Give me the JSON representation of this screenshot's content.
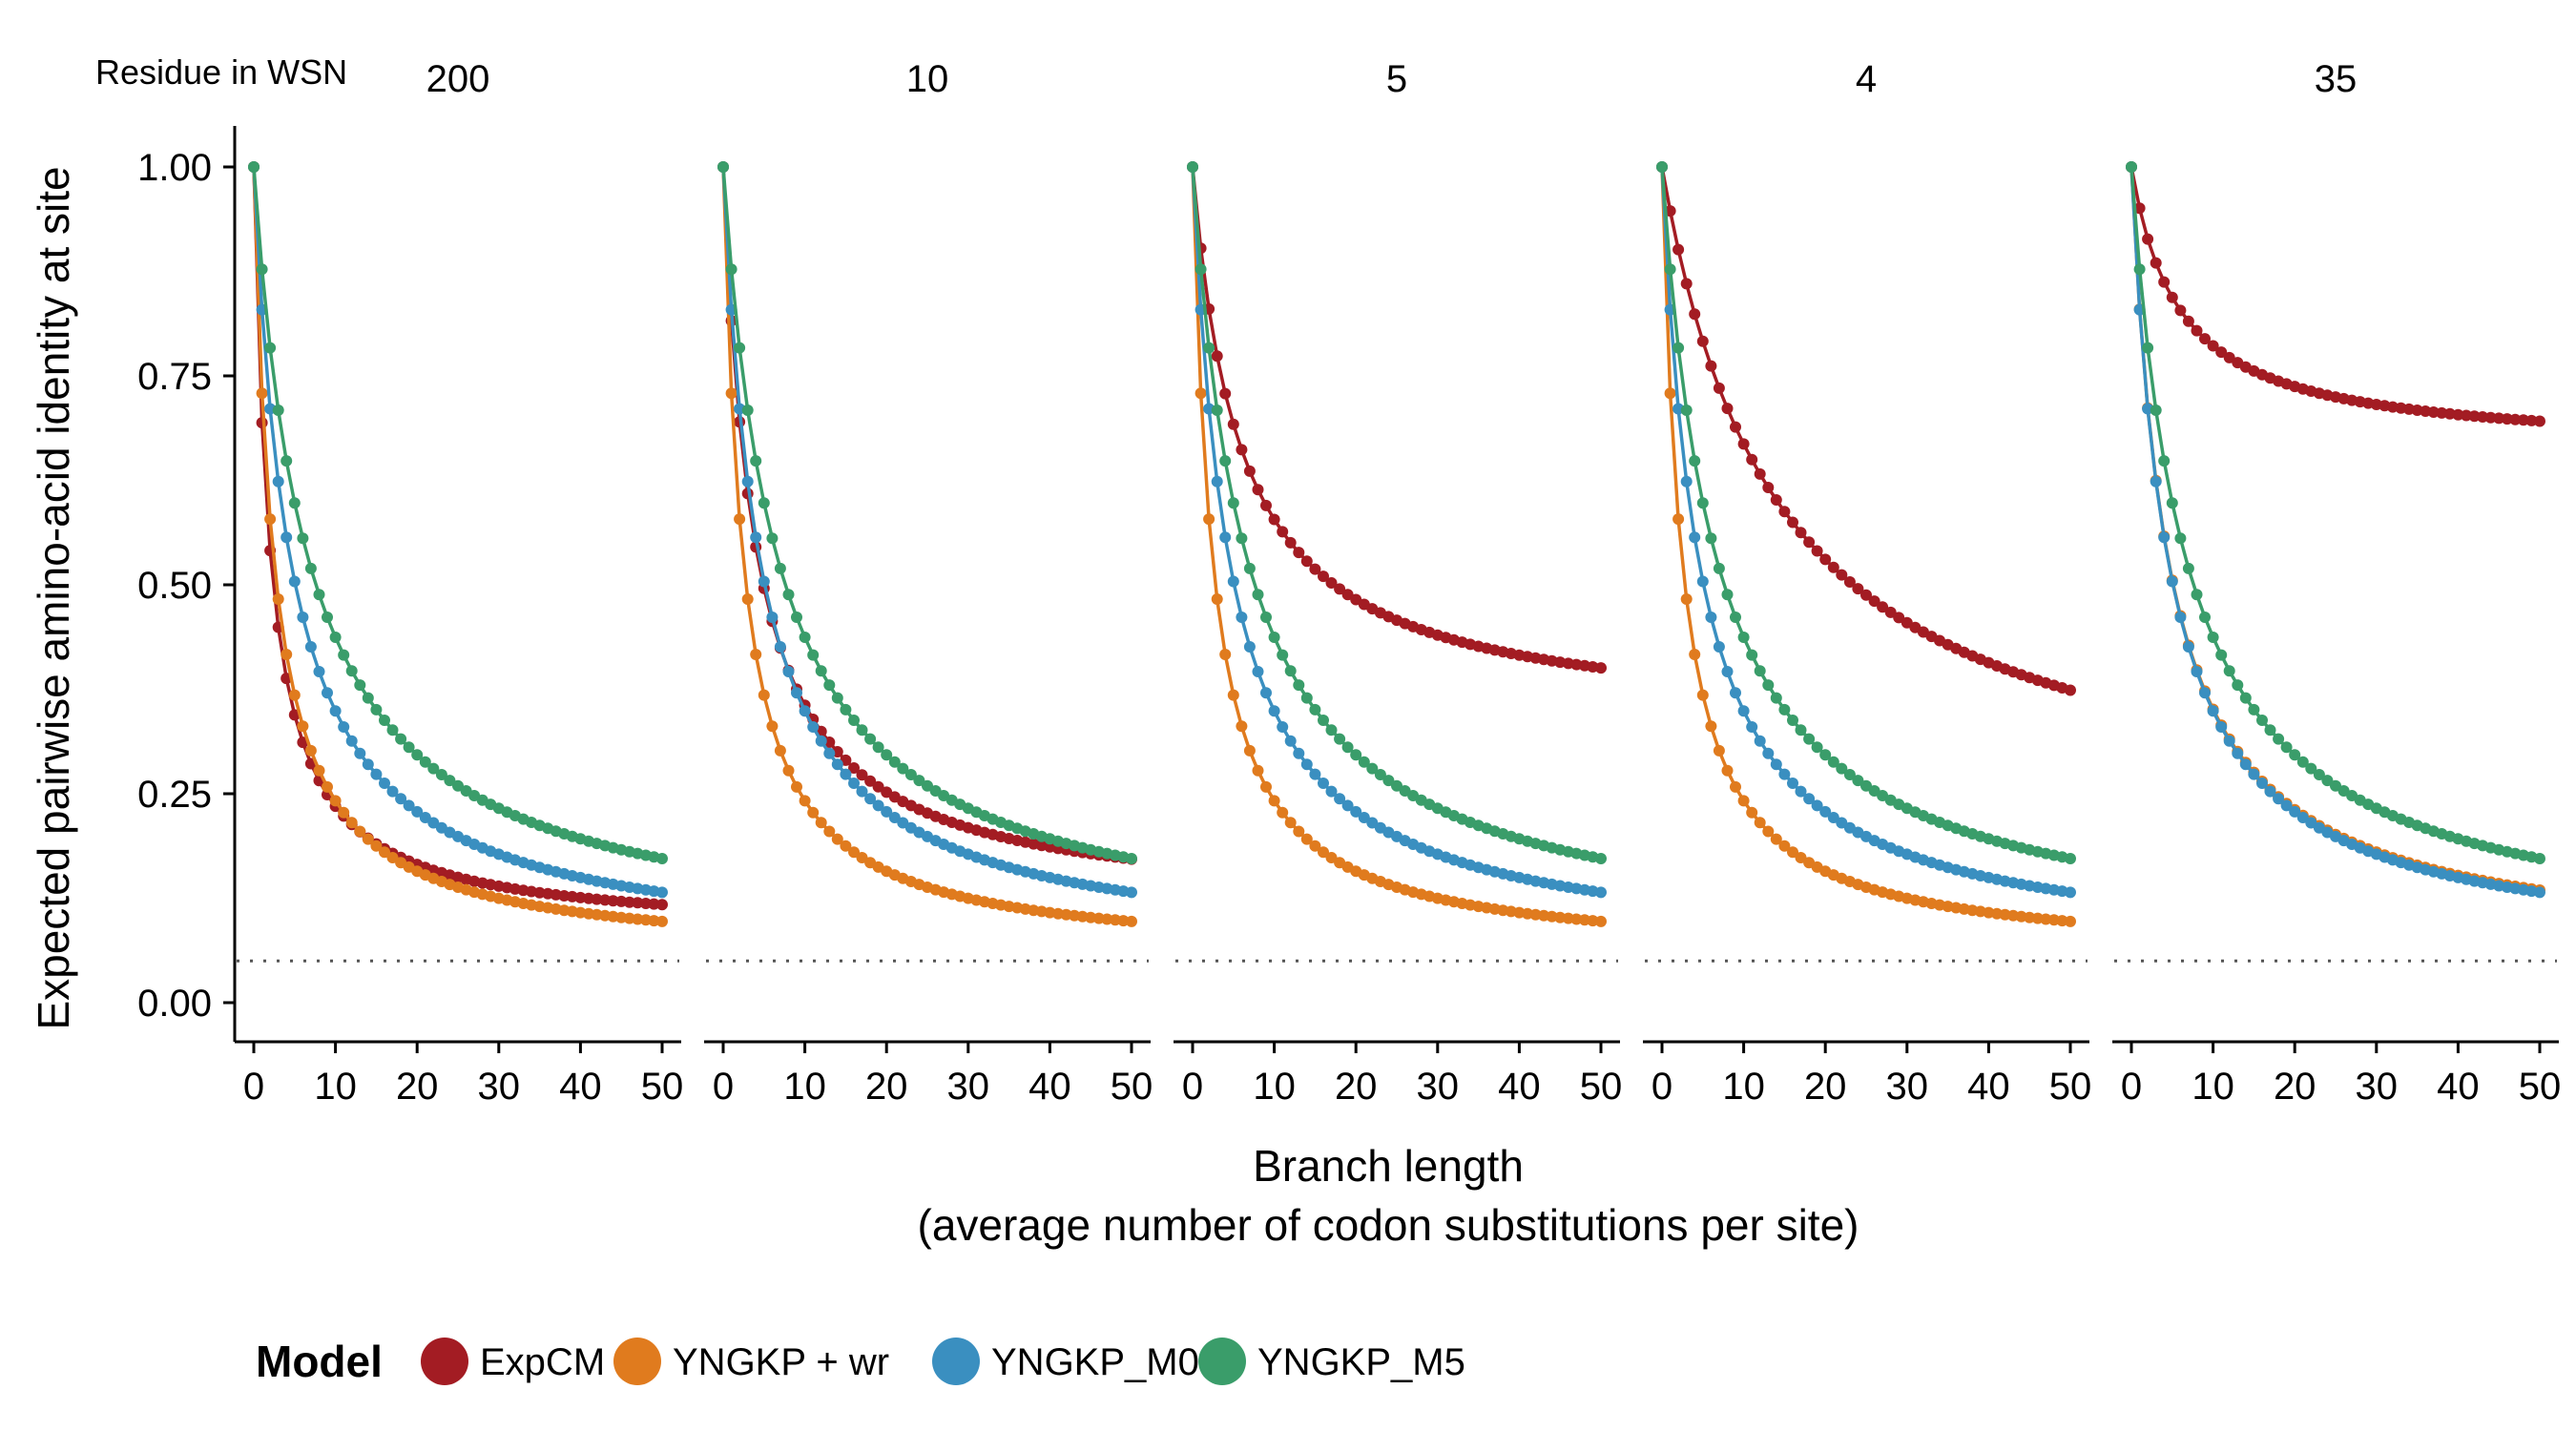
{
  "chart_data": {
    "type": "line",
    "facet_header_label": "Residue in WSN",
    "xlabel": "Branch length",
    "xlabel_line2": "(average number of codon substitutions per site)",
    "ylabel": "Expected pairwise amino-acid identity at site",
    "xlim": [
      0,
      50
    ],
    "ylim": [
      0,
      1
    ],
    "x_ticks": [
      0,
      10,
      20,
      30,
      40,
      50
    ],
    "y_ticks": [
      0.0,
      0.25,
      0.5,
      0.75,
      1.0
    ],
    "y_tick_labels": [
      "0.00",
      "0.25",
      "0.50",
      "0.75",
      "1.00"
    ],
    "reference_line_y": 0.05,
    "reference_line_style": "dotted",
    "x_step": 1,
    "legend": {
      "title": "Model",
      "position": "bottom"
    },
    "series_styles": [
      {
        "name": "ExpCM",
        "color": "#a31c23"
      },
      {
        "name": "YNGKP + wr",
        "color": "#e07b1e"
      },
      {
        "name": "YNGKP_M0",
        "color": "#3a8fc0"
      },
      {
        "name": "YNGKP_M5",
        "color": "#3a9d6a"
      }
    ],
    "panels": [
      {
        "label": "200",
        "series": [
          {
            "name": "ExpCM",
            "asymptote": 0.082,
            "rate": 0.5
          },
          {
            "name": "YNGKP + wr",
            "asymptote": 0.052,
            "rate": 0.4
          },
          {
            "name": "YNGKP_M0",
            "asymptote": 0.053,
            "rate": 0.22
          },
          {
            "name": "YNGKP_M5",
            "asymptote": 0.062,
            "rate": 0.15
          }
        ]
      },
      {
        "label": "10",
        "series": [
          {
            "name": "ExpCM",
            "asymptote": 0.108,
            "rate": 0.26
          },
          {
            "name": "YNGKP + wr",
            "asymptote": 0.052,
            "rate": 0.4
          },
          {
            "name": "YNGKP_M0",
            "asymptote": 0.053,
            "rate": 0.22
          },
          {
            "name": "YNGKP_M5",
            "asymptote": 0.062,
            "rate": 0.15
          }
        ]
      },
      {
        "label": "5",
        "series": [
          {
            "name": "ExpCM",
            "asymptote": 0.33,
            "rate": 0.17
          },
          {
            "name": "YNGKP + wr",
            "asymptote": 0.052,
            "rate": 0.4
          },
          {
            "name": "YNGKP_M0",
            "asymptote": 0.053,
            "rate": 0.22
          },
          {
            "name": "YNGKP_M5",
            "asymptote": 0.062,
            "rate": 0.15
          }
        ]
      },
      {
        "label": "4",
        "series": [
          {
            "name": "ExpCM",
            "asymptote": 0.195,
            "rate": 0.07
          },
          {
            "name": "YNGKP + wr",
            "asymptote": 0.052,
            "rate": 0.4
          },
          {
            "name": "YNGKP_M0",
            "asymptote": 0.053,
            "rate": 0.22
          },
          {
            "name": "YNGKP_M5",
            "asymptote": 0.062,
            "rate": 0.15
          }
        ]
      },
      {
        "label": "35",
        "series": [
          {
            "name": "ExpCM",
            "asymptote": 0.66,
            "rate": 0.17
          },
          {
            "name": "YNGKP + wr",
            "asymptote": 0.056,
            "rate": 0.22
          },
          {
            "name": "YNGKP_M0",
            "asymptote": 0.053,
            "rate": 0.22
          },
          {
            "name": "YNGKP_M5",
            "asymptote": 0.062,
            "rate": 0.15
          }
        ]
      }
    ]
  }
}
